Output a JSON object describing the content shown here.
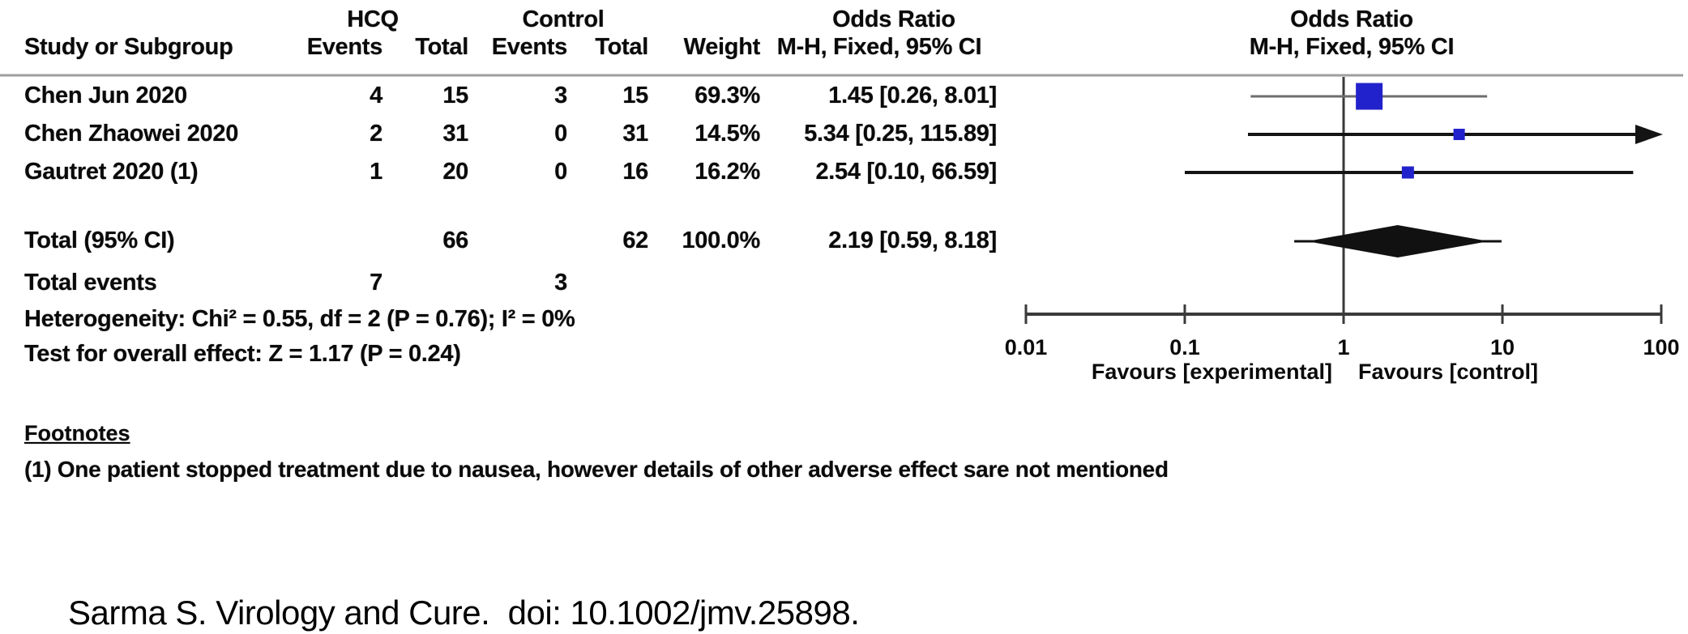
{
  "meta": {
    "colors": {
      "square_blue": "#2222cc",
      "ink": "#141414",
      "grey_ci_line": "#6e6e6e",
      "rule_grey": "#9e9e9e",
      "diamond_black": "#111111"
    }
  },
  "table": {
    "group": {
      "hcq": "HCQ",
      "control": "Control",
      "odds_left": "Odds Ratio",
      "odds_right": "Odds Ratio"
    },
    "cols": {
      "study": "Study or Subgroup",
      "events1": "Events",
      "total1": "Total",
      "events2": "Events",
      "total2": "Total",
      "weight": "Weight",
      "mh_left": "M-H, Fixed, 95% CI",
      "mh_right": "M-H, Fixed, 95% CI"
    },
    "rows": [
      {
        "study": "Chen Jun 2020",
        "e1": "4",
        "t1": "15",
        "e2": "3",
        "t2": "15",
        "weight": "69.3%",
        "or": "1.45 [0.26, 8.01]"
      },
      {
        "study": "Chen Zhaowei 2020",
        "e1": "2",
        "t1": "31",
        "e2": "0",
        "t2": "31",
        "weight": "14.5%",
        "or": "5.34 [0.25, 115.89]"
      },
      {
        "study": "Gautret 2020 (1)",
        "e1": "1",
        "t1": "20",
        "e2": "0",
        "t2": "16",
        "weight": "16.2%",
        "or": "2.54 [0.10, 66.59]"
      }
    ],
    "total": {
      "label": "Total (95% CI)",
      "t1": "66",
      "t2": "62",
      "weight": "100.0%",
      "or": "2.19 [0.59, 8.18]"
    },
    "total_events": {
      "label": "Total events",
      "e1": "7",
      "e2": "3"
    },
    "heterogeneity": "Heterogeneity: Chi² = 0.55, df = 2 (P = 0.76); I² = 0%",
    "overall_effect": "Test for overall effect: Z = 1.17 (P = 0.24)"
  },
  "footnotes": {
    "title": "Footnotes",
    "items": [
      "(1) One patient stopped treatment due to nausea, however details of other adverse effect sare not mentioned"
    ]
  },
  "citation": "Sarma S. Virology and Cure.  doi: 10.1002/jmv.25898.",
  "chart_data": {
    "type": "forest",
    "scale": "log10",
    "effect_measure": "Odds Ratio, M-H, Fixed, 95% CI",
    "axis": {
      "min": 0.01,
      "max": 100,
      "ticks": [
        0.01,
        0.1,
        1,
        10,
        100
      ],
      "tick_labels": [
        "0.01",
        "0.1",
        "1",
        "10",
        "100"
      ],
      "left_label": "Favours [experimental]",
      "right_label": "Favours [control]"
    },
    "studies": [
      {
        "name": "Chen Jun 2020",
        "or": 1.45,
        "ci_low": 0.26,
        "ci_high": 8.01,
        "weight": 69.3
      },
      {
        "name": "Chen Zhaowei 2020",
        "or": 5.34,
        "ci_low": 0.25,
        "ci_high": 115.89,
        "weight": 14.5
      },
      {
        "name": "Gautret 2020 (1)",
        "or": 2.54,
        "ci_low": 0.1,
        "ci_high": 66.59,
        "weight": 16.2
      }
    ],
    "total": {
      "or": 2.19,
      "ci_low": 0.59,
      "ci_high": 8.18
    }
  }
}
